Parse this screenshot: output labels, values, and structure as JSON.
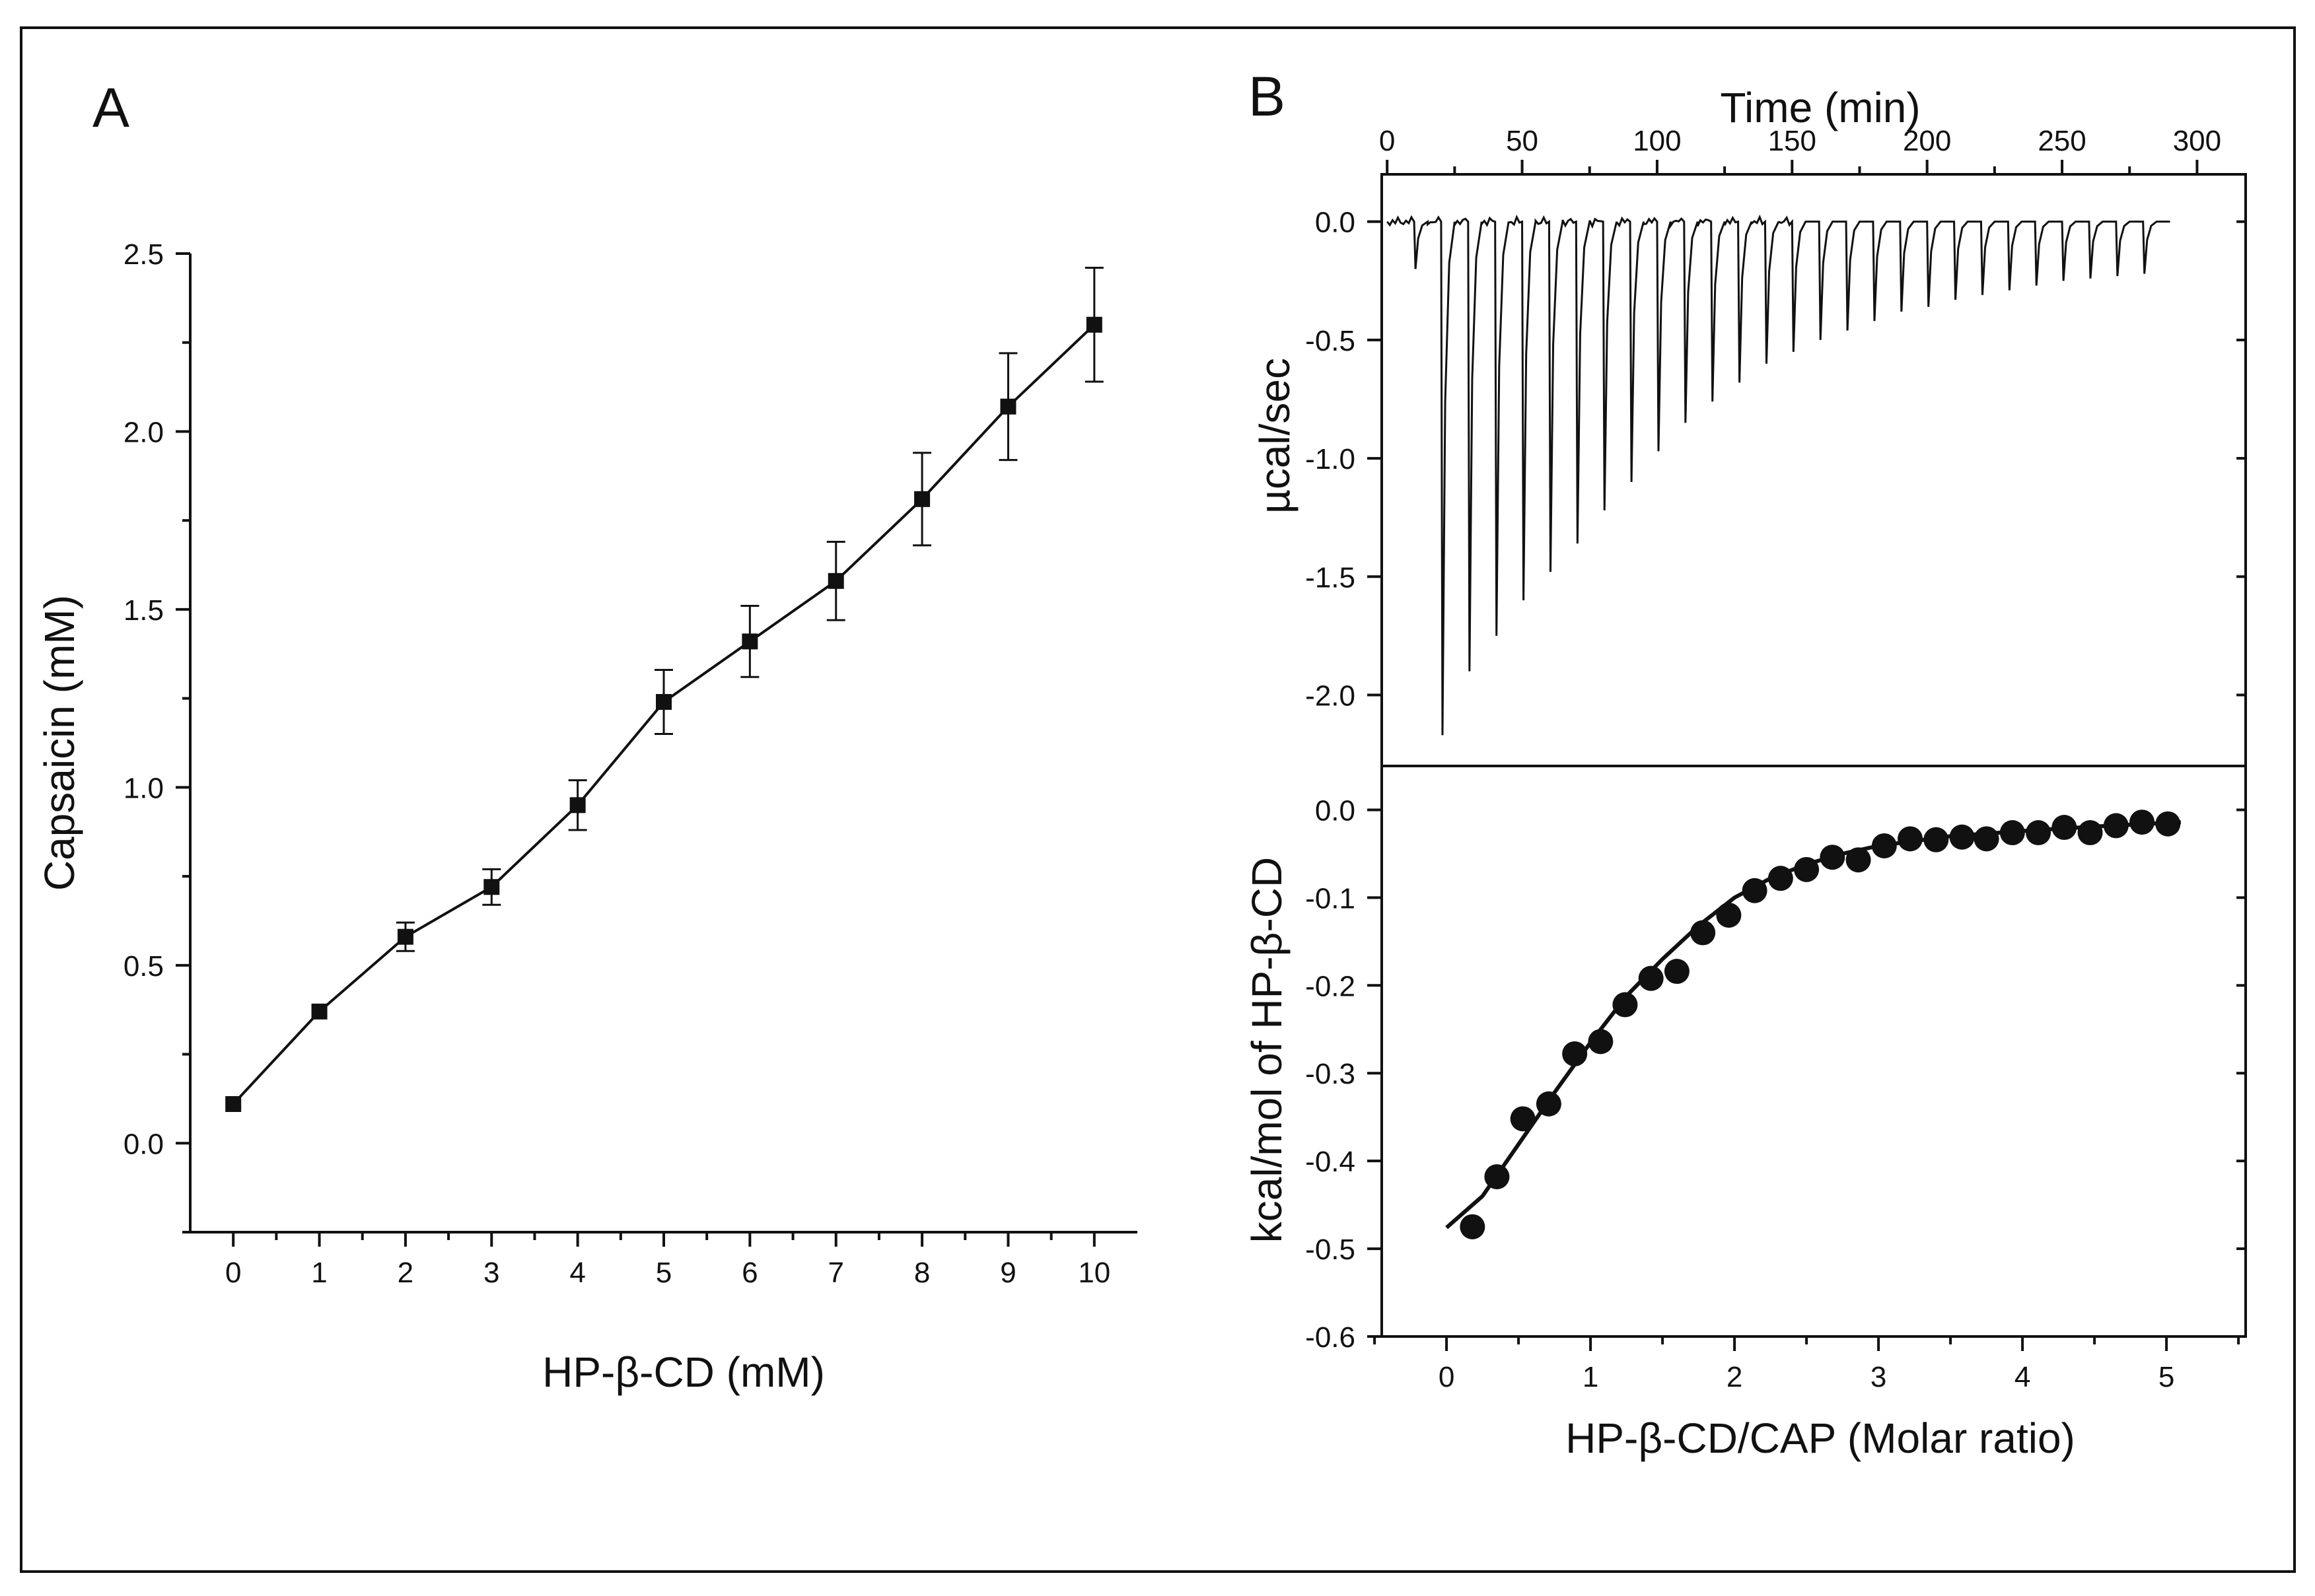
{
  "chart_data": [
    {
      "panel": "A",
      "type": "line",
      "xlabel": "HP-β-CD (mM)",
      "ylabel": "Capsaicin (mM)",
      "xlim": [
        -0.5,
        10.5
      ],
      "ylim": [
        -0.25,
        2.5
      ],
      "xticks": [
        "0",
        "1",
        "2",
        "3",
        "4",
        "5",
        "6",
        "7",
        "8",
        "9",
        "10"
      ],
      "yticks": [
        "0.0",
        "0.5",
        "1.0",
        "1.5",
        "2.0",
        "2.5"
      ],
      "x": [
        0,
        1,
        2,
        3,
        4,
        5,
        6,
        7,
        8,
        9,
        10
      ],
      "y": [
        0.11,
        0.37,
        0.58,
        0.72,
        0.95,
        1.24,
        1.41,
        1.58,
        1.81,
        2.07,
        2.3
      ],
      "yerr": [
        0,
        0,
        0.04,
        0.05,
        0.07,
        0.09,
        0.1,
        0.11,
        0.13,
        0.15,
        0.16
      ],
      "marker": "square"
    },
    {
      "panel": "B",
      "subplot": "top",
      "type": "line",
      "xlabel": "Time (min)",
      "ylabel": "µcal/sec",
      "xlim": [
        -2,
        318
      ],
      "ylim": [
        -2.3,
        0.2
      ],
      "xticks": [
        "0",
        "50",
        "100",
        "150",
        "200",
        "250",
        "300"
      ],
      "yticks": [
        "0.0",
        "-0.5",
        "-1.0",
        "-1.5",
        "-2.0"
      ],
      "baseline": 0.0,
      "trace_end_min": 290,
      "injection_times_min": [
        10,
        20,
        30,
        40,
        50,
        60,
        70,
        80,
        90,
        100,
        110,
        120,
        130,
        140,
        150,
        160,
        170,
        180,
        190,
        200,
        210,
        220,
        230,
        240,
        250,
        260,
        270,
        280
      ],
      "peak_values": [
        -0.2,
        -2.17,
        -1.9,
        -1.75,
        -1.6,
        -1.48,
        -1.36,
        -1.22,
        -1.1,
        -0.97,
        -0.85,
        -0.76,
        -0.68,
        -0.6,
        -0.55,
        -0.5,
        -0.46,
        -0.42,
        -0.38,
        -0.36,
        -0.33,
        -0.31,
        -0.29,
        -0.27,
        -0.25,
        -0.24,
        -0.23,
        -0.22
      ]
    },
    {
      "panel": "B",
      "subplot": "bottom",
      "type": "scatter",
      "xlabel": "HP-β-CD/CAP (Molar ratio)",
      "ylabel": "kcal/mol of HP-β-CD",
      "xlim": [
        -0.45,
        5.55
      ],
      "ylim": [
        -0.6,
        0.05
      ],
      "xticks": [
        "0",
        "1",
        "2",
        "3",
        "4",
        "5"
      ],
      "yticks": [
        "0.0",
        "-0.1",
        "-0.2",
        "-0.3",
        "-0.4",
        "-0.5",
        "-0.6"
      ],
      "x": [
        0.18,
        0.35,
        0.53,
        0.71,
        0.89,
        1.07,
        1.24,
        1.42,
        1.6,
        1.78,
        1.96,
        2.14,
        2.32,
        2.5,
        2.68,
        2.86,
        3.04,
        3.22,
        3.4,
        3.58,
        3.75,
        3.93,
        4.11,
        4.29,
        4.47,
        4.65,
        4.83,
        5.01
      ],
      "y": [
        -0.475,
        -0.418,
        -0.352,
        -0.335,
        -0.278,
        -0.264,
        -0.222,
        -0.192,
        -0.184,
        -0.14,
        -0.12,
        -0.092,
        -0.078,
        -0.068,
        -0.054,
        -0.057,
        -0.041,
        -0.033,
        -0.034,
        -0.031,
        -0.033,
        -0.026,
        -0.026,
        -0.02,
        -0.026,
        -0.018,
        -0.014,
        -0.016
      ],
      "fit_x": [
        0.0,
        0.25,
        0.5,
        0.75,
        1.0,
        1.25,
        1.5,
        1.75,
        2.0,
        2.25,
        2.5,
        2.75,
        3.0,
        3.5,
        4.0,
        4.5,
        5.1
      ],
      "fit_y": [
        -0.476,
        -0.44,
        -0.381,
        -0.322,
        -0.265,
        -0.212,
        -0.17,
        -0.132,
        -0.1,
        -0.078,
        -0.062,
        -0.05,
        -0.041,
        -0.03,
        -0.024,
        -0.019,
        -0.014
      ]
    }
  ],
  "panel_labels": {
    "a": "A",
    "b": "B"
  }
}
